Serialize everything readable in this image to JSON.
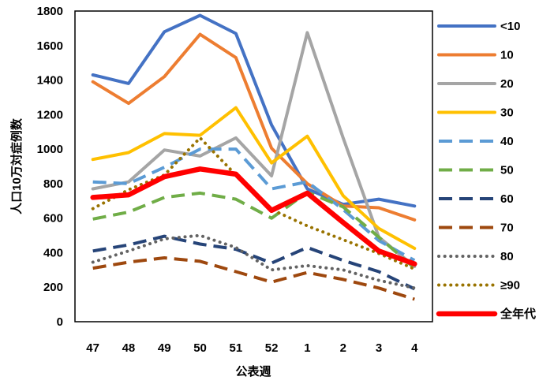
{
  "chart_data": {
    "type": "line",
    "xlabel": "公表週",
    "ylabel": "人口10万対症例数",
    "categories": [
      "47",
      "48",
      "49",
      "50",
      "51",
      "52",
      "1",
      "2",
      "3",
      "4"
    ],
    "ylim": [
      0,
      1800
    ],
    "yticks": [
      0,
      200,
      400,
      600,
      800,
      1000,
      1200,
      1400,
      1600,
      1800
    ],
    "grid": false,
    "legend": "right",
    "series": [
      {
        "name": "<10",
        "color": "#4472C4",
        "style": "solid",
        "values": [
          1430,
          1380,
          1680,
          1775,
          1670,
          1140,
          770,
          680,
          710,
          670
        ]
      },
      {
        "name": "10",
        "color": "#ED7D31",
        "style": "solid",
        "values": [
          1390,
          1265,
          1420,
          1665,
          1530,
          1005,
          800,
          670,
          660,
          590
        ]
      },
      {
        "name": "20",
        "color": "#A5A5A5",
        "style": "solid",
        "values": [
          770,
          810,
          995,
          960,
          1065,
          845,
          1675,
          1065,
          490,
          320
        ]
      },
      {
        "name": "30",
        "color": "#FFC000",
        "style": "solid",
        "values": [
          940,
          980,
          1090,
          1080,
          1240,
          920,
          1075,
          730,
          540,
          425
        ]
      },
      {
        "name": "40",
        "color": "#5B9BD5",
        "style": "dashed",
        "values": [
          810,
          800,
          895,
          1000,
          1000,
          770,
          810,
          650,
          470,
          355
        ]
      },
      {
        "name": "50",
        "color": "#70AD47",
        "style": "dashed",
        "values": [
          595,
          635,
          720,
          745,
          710,
          600,
          750,
          665,
          490,
          310
        ]
      },
      {
        "name": "60",
        "color": "#264478",
        "style": "dashed",
        "values": [
          410,
          445,
          495,
          450,
          420,
          340,
          430,
          355,
          290,
          190
        ]
      },
      {
        "name": "70",
        "color": "#9E480E",
        "style": "dashed",
        "values": [
          310,
          345,
          370,
          350,
          290,
          230,
          285,
          245,
          195,
          130
        ]
      },
      {
        "name": "80",
        "color": "#636363",
        "style": "dotted",
        "values": [
          345,
          410,
          480,
          500,
          430,
          300,
          325,
          300,
          240,
          195
        ]
      },
      {
        "name": "≥90",
        "color": "#997300",
        "style": "dotted",
        "values": [
          655,
          765,
          850,
          1065,
          850,
          650,
          555,
          475,
          395,
          305
        ]
      },
      {
        "name": "全年代",
        "color": "#FF0000",
        "style": "solid-thick",
        "values": [
          720,
          735,
          840,
          885,
          855,
          645,
          745,
          575,
          410,
          335
        ]
      }
    ]
  }
}
